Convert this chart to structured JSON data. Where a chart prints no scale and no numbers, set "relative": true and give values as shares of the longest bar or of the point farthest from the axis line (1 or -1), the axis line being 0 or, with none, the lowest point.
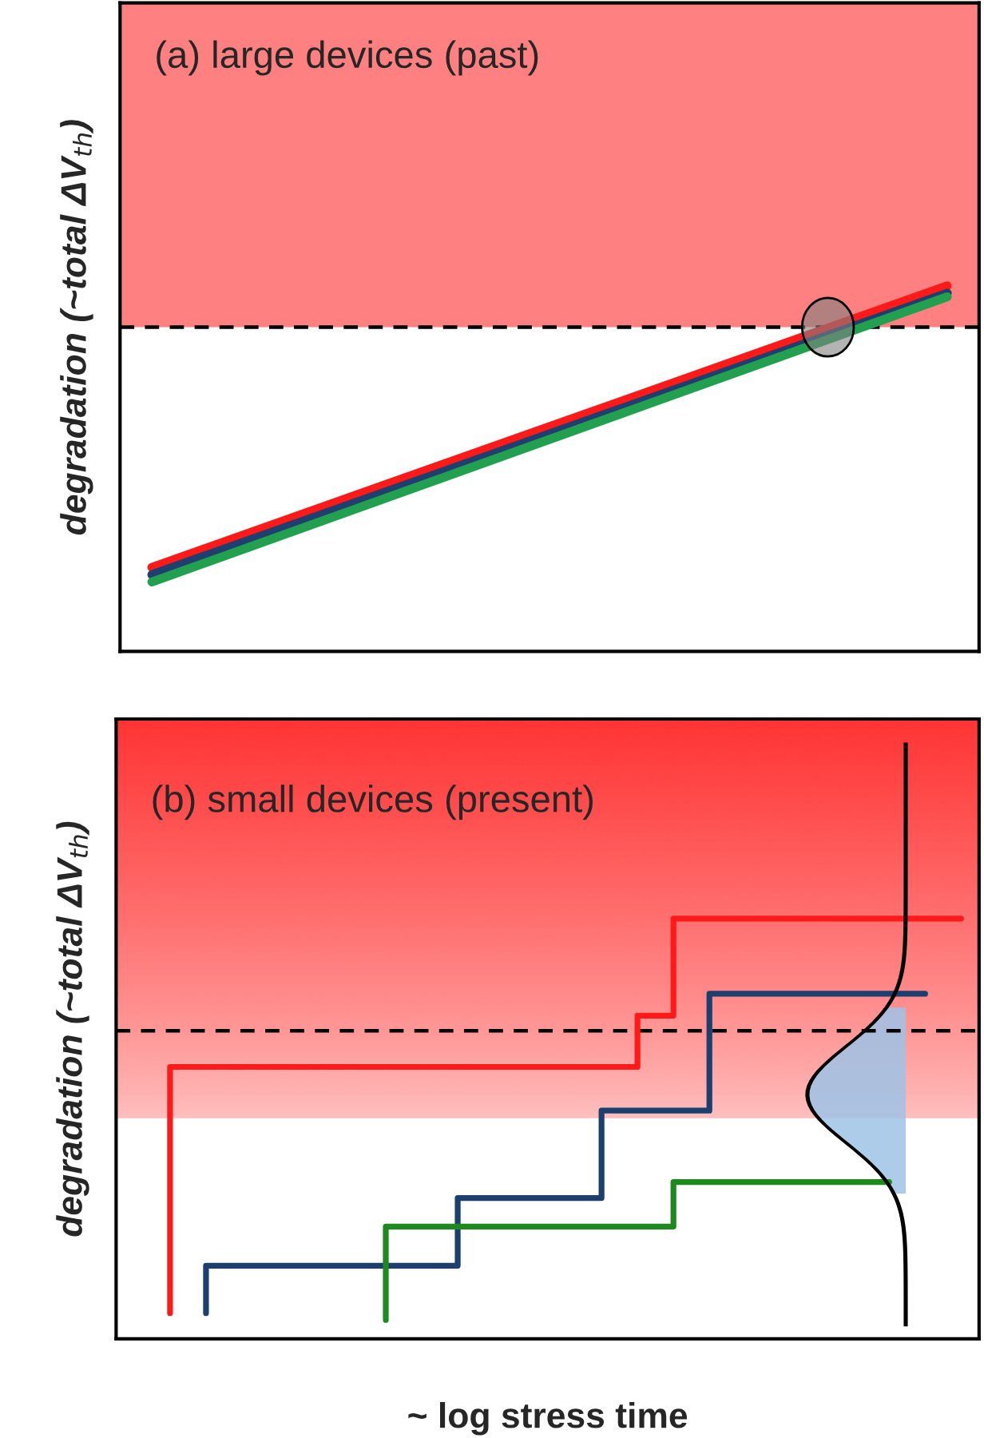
{
  "chart_data": [
    {
      "type": "line",
      "relative": true,
      "ylabel": "degradation (~total ΔV$_{th}$)",
      "annotations": [
        "(a) large devices (past)"
      ],
      "categories": [
        null,
        null
      ],
      "ref_lines": [
        {
          "axis": "y",
          "value": 0.887,
          "color": "#000000",
          "line_style": "dashed"
        }
      ],
      "bands": [
        {
          "axis": "y",
          "from": 0.887,
          "to": 1.774,
          "color": "#ff8080"
        }
      ],
      "series": [
        {
          "color": "#ff1a1a",
          "values": [
            0.23,
            1.0
          ]
        },
        {
          "color": "#1f3f6e",
          "values": [
            0.21,
            0.98
          ]
        },
        {
          "color": "#22a050",
          "values": [
            0.19,
            0.97
          ]
        }
      ]
    },
    {
      "type": "step",
      "relative": true,
      "ylabel": "degradation (~total ΔV$_{th}$)",
      "xlabel": "~ log stress time",
      "annotations": [
        "(b) small devices (present)"
      ],
      "categories": [
        null,
        null,
        null,
        null,
        null,
        null,
        null,
        null,
        null,
        null,
        null,
        null,
        null,
        null,
        null,
        null,
        null,
        null,
        null,
        null,
        null,
        null,
        null,
        null
      ],
      "ref_lines": [
        {
          "axis": "y",
          "value": 0.733,
          "color": "#000000",
          "line_style": "dashed"
        }
      ],
      "bands": [
        {
          "axis": "y",
          "from": 0.525,
          "to": 1.475,
          "color": "#ff3333"
        }
      ],
      "series": [
        {
          "color": "#ff1a1a",
          "values": [
            null,
            0.061,
            0.647,
            0.647,
            0.647,
            0.647,
            0.647,
            0.647,
            0.647,
            0.647,
            0.647,
            0.647,
            0.647,
            0.647,
            0.647,
            0.769,
            1.0,
            1.0,
            1.0,
            1.0,
            1.0,
            1.0,
            1.0,
            1.0
          ]
        },
        {
          "color": "#1c3f6e",
          "values": [
            null,
            null,
            0.061,
            0.174,
            0.174,
            0.174,
            0.174,
            0.174,
            0.174,
            0.174,
            0.335,
            0.335,
            0.335,
            0.335,
            0.543,
            0.543,
            0.543,
            0.821,
            0.821,
            0.821,
            0.821,
            0.821,
            0.821,
            null
          ]
        },
        {
          "color": "#1e8a1e",
          "values": [
            null,
            null,
            null,
            null,
            null,
            null,
            null,
            0.045,
            0.267,
            0.267,
            0.267,
            0.267,
            0.267,
            0.267,
            0.267,
            0.267,
            0.373,
            0.373,
            0.373,
            0.373,
            0.373,
            0.373,
            null,
            null
          ]
        }
      ]
    }
  ]
}
